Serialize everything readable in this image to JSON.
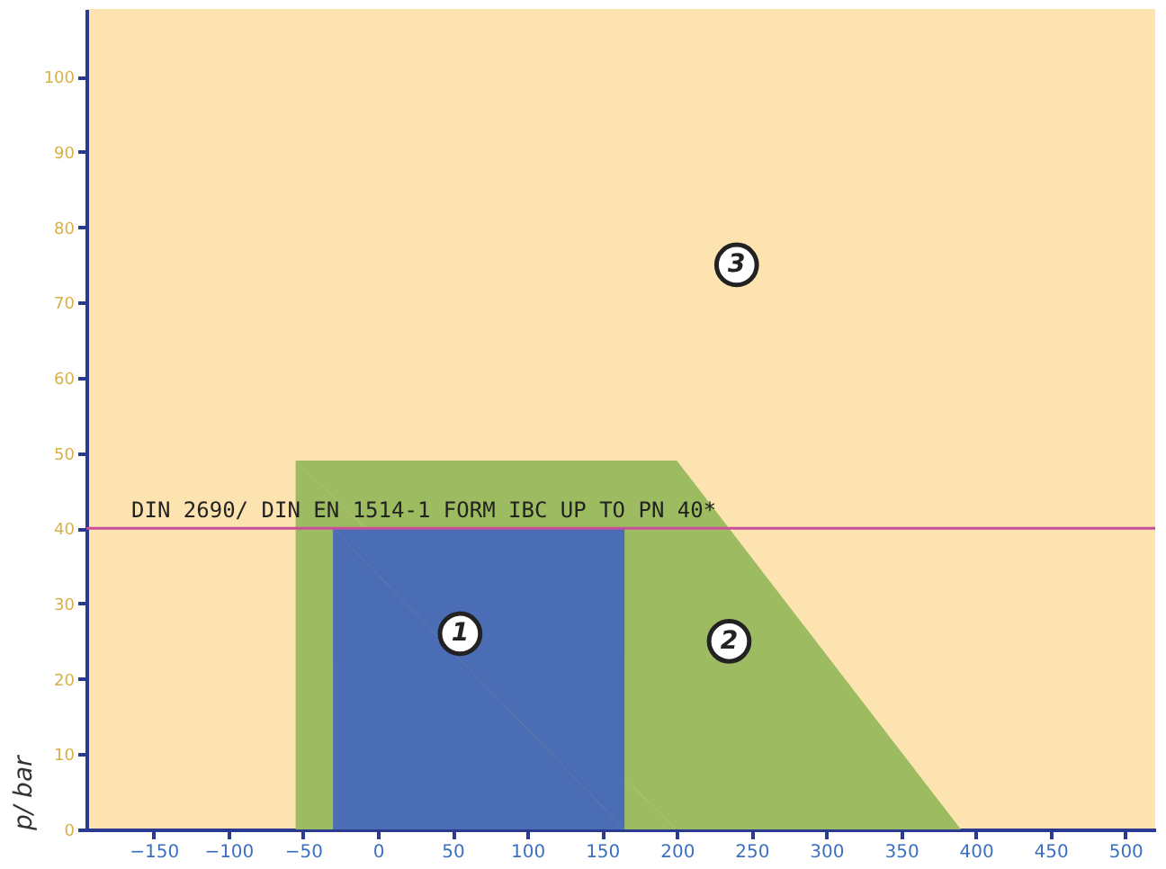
{
  "chart_data": {
    "type": "area",
    "ylabel": "p/ bar",
    "series": [
      {
        "x": [
          -55,
          200,
          390
        ],
        "values": [
          49,
          49,
          0
        ],
        "color": "#9dbb61"
      },
      {
        "x": [
          -30,
          165
        ],
        "values": [
          40,
          40
        ],
        "color": "#4a6db5"
      }
    ],
    "xlim": [
      -195,
      520
    ],
    "xticks": [
      -150,
      -100,
      -50,
      0,
      50,
      100,
      150,
      200,
      250,
      300,
      350,
      400,
      450,
      500
    ],
    "ylim": [
      0,
      109
    ],
    "yticks": [
      0,
      10,
      20,
      30,
      40,
      50,
      60,
      70,
      80,
      90,
      100
    ],
    "ref_lines": [
      {
        "axis": "y",
        "value": 40,
        "label": "DIN 2690/ DIN EN 1514-1 FORM IBC UP TO PN 40*",
        "color": "#c8509a"
      }
    ],
    "annotations": [
      {
        "text": "1",
        "x": 55,
        "y": 26
      },
      {
        "text": "2",
        "x": 235,
        "y": 25
      },
      {
        "text": "3",
        "x": 240,
        "y": 75
      }
    ],
    "grid": false
  }
}
